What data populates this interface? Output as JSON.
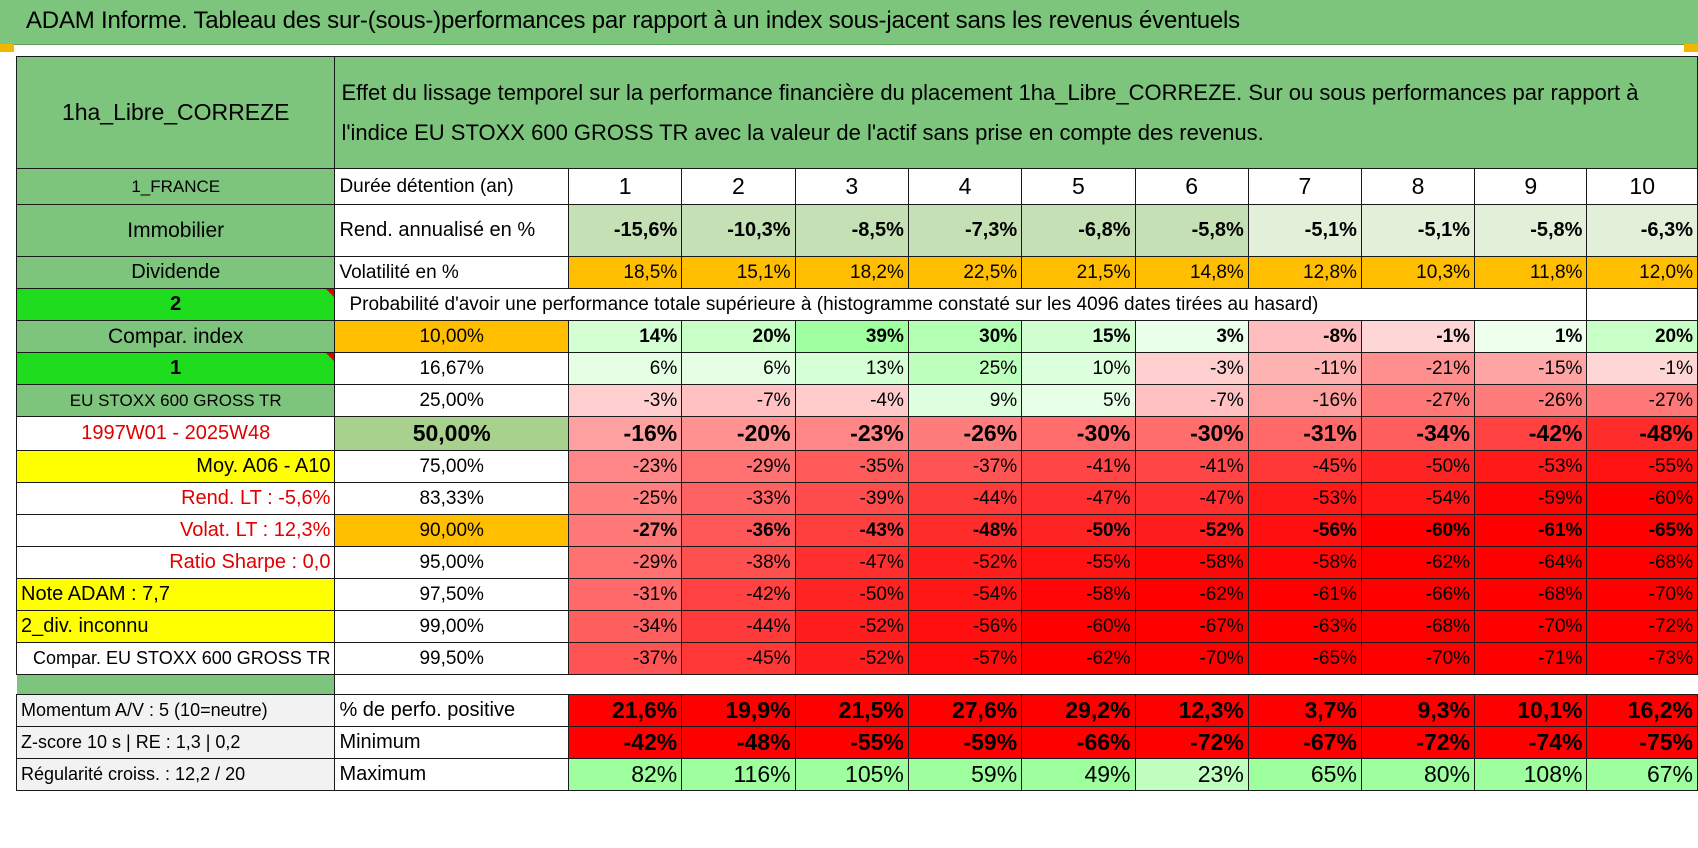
{
  "title": "ADAM Informe. Tableau des sur-(sous-)performances par rapport à un index sous-jacent sans les revenus éventuels",
  "header": {
    "fund_name": "1ha_Libre_CORREZE",
    "description": "Effet du lissage temporel sur la performance financière du placement 1ha_Libre_CORREZE. Sur ou sous performances par rapport à l'indice EU STOXX 600 GROSS TR avec la valeur de l'actif sans prise en compte des revenus."
  },
  "left": {
    "country": "1_FRANCE",
    "category": "Immobilier",
    "type": "Dividende",
    "selector_1": "2",
    "compar_index_label": "Compar. index",
    "selector_2": "1",
    "index_name": "EU STOXX 600 GROSS TR",
    "period": "1997W01 - 2025W48",
    "moy": "Moy. A06 - A10",
    "rend_lt": "Rend. LT :    -5,6%",
    "volat_lt": "Volat. LT :    12,3%",
    "ratio_sharpe": "Ratio Sharpe :     0,0",
    "note_adam": "Note ADAM : 7,7",
    "div": "2_div. inconnu",
    "compar_full": "Compar. EU STOXX 600 GROSS TR",
    "momentum": "Momentum A/V : 5 (10=neutre)",
    "zscore": "Z-score 10 s | RE : 1,3  |  0,2",
    "regularite": "Régularité croiss. : 12,2 / 20"
  },
  "table": {
    "duree_label": "Durée détention (an)",
    "years": [
      "1",
      "2",
      "3",
      "4",
      "5",
      "6",
      "7",
      "8",
      "9",
      "10"
    ],
    "rend_label": "Rend. annualisé en %",
    "rend": [
      "-15,6%",
      "-10,3%",
      "-8,5%",
      "-7,3%",
      "-6,8%",
      "-5,8%",
      "-5,1%",
      "-5,1%",
      "-5,8%",
      "-6,3%"
    ],
    "vol_label": "Volatilité en %",
    "vol": [
      "18,5%",
      "15,1%",
      "18,2%",
      "22,5%",
      "21,5%",
      "14,8%",
      "12,8%",
      "10,3%",
      "11,8%",
      "12,0%"
    ],
    "prob_label": "Probabilité d'avoir une performance totale supérieure à (histogramme constaté sur les 4096 dates tirées au hasard)",
    "quantiles": [
      {
        "p": "10,00%",
        "v": [
          "14%",
          "20%",
          "39%",
          "30%",
          "15%",
          "3%",
          "-8%",
          "-1%",
          "1%",
          "20%"
        ]
      },
      {
        "p": "16,67%",
        "v": [
          "6%",
          "6%",
          "13%",
          "25%",
          "10%",
          "-3%",
          "-11%",
          "-21%",
          "-15%",
          "-1%"
        ]
      },
      {
        "p": "25,00%",
        "v": [
          "-3%",
          "-7%",
          "-4%",
          "9%",
          "5%",
          "-7%",
          "-16%",
          "-27%",
          "-26%",
          "-27%"
        ]
      },
      {
        "p": "50,00%",
        "v": [
          "-16%",
          "-20%",
          "-23%",
          "-26%",
          "-30%",
          "-30%",
          "-31%",
          "-34%",
          "-42%",
          "-48%"
        ]
      },
      {
        "p": "75,00%",
        "v": [
          "-23%",
          "-29%",
          "-35%",
          "-37%",
          "-41%",
          "-41%",
          "-45%",
          "-50%",
          "-53%",
          "-55%"
        ]
      },
      {
        "p": "83,33%",
        "v": [
          "-25%",
          "-33%",
          "-39%",
          "-44%",
          "-47%",
          "-47%",
          "-53%",
          "-54%",
          "-59%",
          "-60%"
        ]
      },
      {
        "p": "90,00%",
        "v": [
          "-27%",
          "-36%",
          "-43%",
          "-48%",
          "-50%",
          "-52%",
          "-56%",
          "-60%",
          "-61%",
          "-65%"
        ]
      },
      {
        "p": "95,00%",
        "v": [
          "-29%",
          "-38%",
          "-47%",
          "-52%",
          "-55%",
          "-58%",
          "-58%",
          "-62%",
          "-64%",
          "-68%"
        ]
      },
      {
        "p": "97,50%",
        "v": [
          "-31%",
          "-42%",
          "-50%",
          "-54%",
          "-58%",
          "-62%",
          "-61%",
          "-66%",
          "-68%",
          "-70%"
        ]
      },
      {
        "p": "99,00%",
        "v": [
          "-34%",
          "-44%",
          "-52%",
          "-56%",
          "-60%",
          "-67%",
          "-63%",
          "-68%",
          "-70%",
          "-72%"
        ]
      },
      {
        "p": "99,50%",
        "v": [
          "-37%",
          "-45%",
          "-52%",
          "-57%",
          "-62%",
          "-70%",
          "-65%",
          "-70%",
          "-71%",
          "-73%"
        ]
      }
    ],
    "pos_label": "% de perfo. positive",
    "pos": [
      "21,6%",
      "19,9%",
      "21,5%",
      "27,6%",
      "29,2%",
      "12,3%",
      "3,7%",
      "9,3%",
      "10,1%",
      "16,2%"
    ],
    "min_label": "Minimum",
    "min": [
      "-42%",
      "-48%",
      "-55%",
      "-59%",
      "-66%",
      "-72%",
      "-67%",
      "-72%",
      "-74%",
      "-75%"
    ],
    "max_label": "Maximum",
    "max": [
      "82%",
      "116%",
      "105%",
      "59%",
      "49%",
      "23%",
      "65%",
      "80%",
      "108%",
      "67%"
    ]
  },
  "colors": {
    "header_green": "#7dc47d",
    "bright_green": "#1fdc1f",
    "yellow": "#ffff00",
    "orange": "#ffbf00",
    "negative_red": "#ff0000",
    "positive_green": "#9ef59e"
  }
}
